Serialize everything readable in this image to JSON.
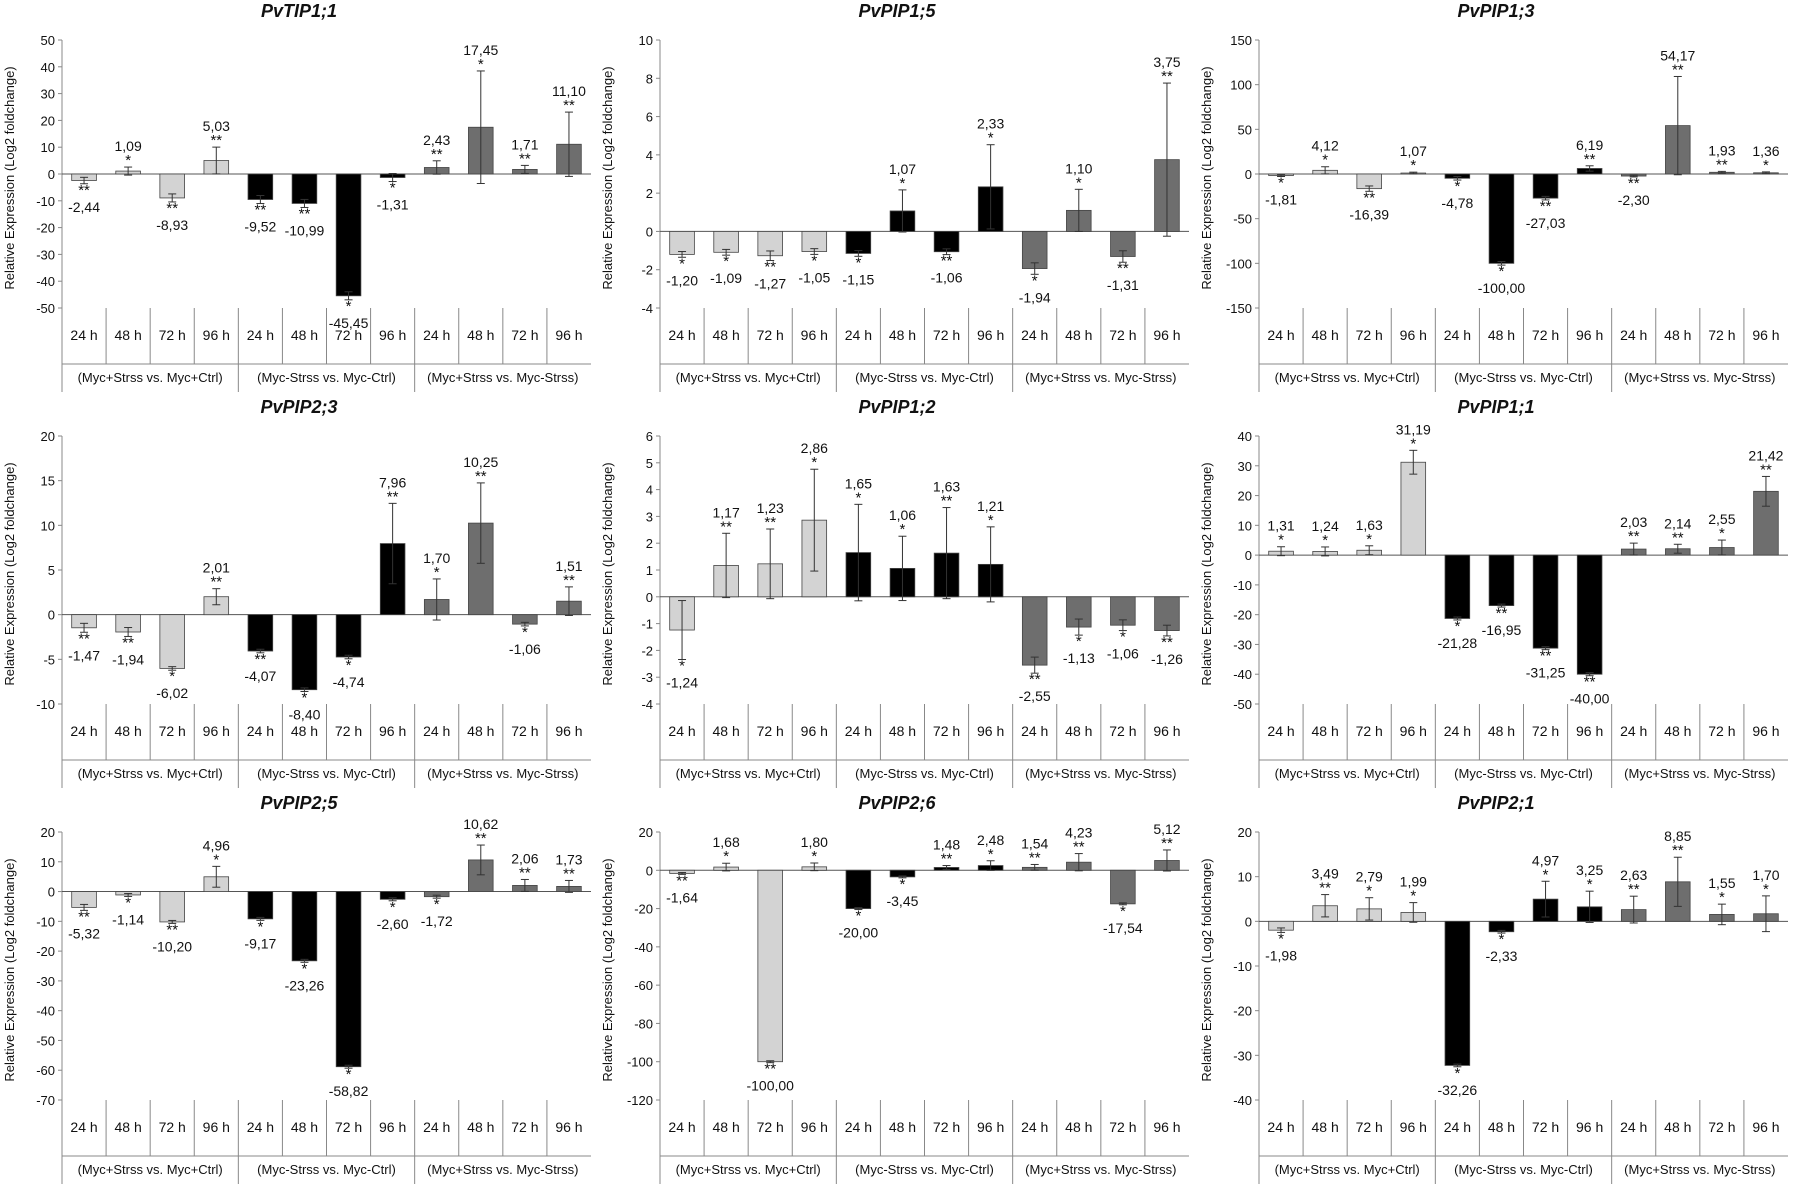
{
  "y_axis_label": "Relative Expression (Log2 foldchange)",
  "times": [
    "24 h",
    "48 h",
    "72 h",
    "96 h"
  ],
  "groups": [
    "(Myc+Strss vs. Myc+Ctrl)",
    "(Myc-Strss vs. Myc-Ctrl)",
    "(Myc+Strss vs. Myc-Strss)"
  ],
  "group_colors": [
    "#d3d3d3",
    "#000000",
    "#6e6e6e"
  ],
  "chart_data": [
    {
      "type": "bar",
      "title": "PvTIP1;1",
      "ylim": [
        -50,
        50
      ],
      "yticks": [
        -50,
        -40,
        -30,
        -20,
        -10,
        0,
        10,
        20,
        30,
        40,
        50
      ],
      "values": [
        -2.44,
        1.09,
        -8.93,
        5.03,
        -9.52,
        -10.99,
        -45.45,
        -1.31,
        2.43,
        17.45,
        1.71,
        11.1
      ],
      "labels": [
        "-2,44",
        "1,09",
        "-8,93",
        "5,03",
        "-9,52",
        "-10,99",
        "-45,45",
        "-1,31",
        "2,43",
        "17,45",
        "1,71",
        "11,10"
      ],
      "stars": [
        "**",
        "*",
        "**",
        "**",
        "**",
        "**",
        "*",
        "*",
        "**",
        "*",
        "**",
        "**"
      ],
      "errors": [
        1.2,
        1.5,
        1.5,
        5,
        1.5,
        1.5,
        1.5,
        1.5,
        2.5,
        21,
        1.5,
        12
      ]
    },
    {
      "type": "bar",
      "title": "PvPIP1;5",
      "ylim": [
        -4,
        10
      ],
      "yticks": [
        -4,
        -2,
        0,
        2,
        4,
        6,
        8,
        10
      ],
      "values": [
        -1.2,
        -1.09,
        -1.27,
        -1.05,
        -1.15,
        1.07,
        -1.06,
        2.33,
        -1.94,
        1.1,
        -1.31,
        3.75
      ],
      "labels": [
        "-1,20",
        "-1,09",
        "-1,27",
        "-1,05",
        "-1,15",
        "1,07",
        "-1,06",
        "2,33",
        "-1,94",
        "1,10",
        "-1,31",
        "3,75"
      ],
      "stars": [
        "*",
        "*",
        "**",
        "*",
        "*",
        "*",
        "**",
        "*",
        "*",
        "*",
        "**",
        "**"
      ],
      "errors": [
        0.15,
        0.15,
        0.25,
        0.15,
        0.15,
        1.1,
        0.15,
        2.2,
        0.3,
        1.1,
        0.3,
        4.0
      ]
    },
    {
      "type": "bar",
      "title": "PvPIP1;3",
      "ylim": [
        -150,
        150
      ],
      "yticks": [
        -150,
        -100,
        -50,
        0,
        50,
        100,
        150
      ],
      "values": [
        -1.81,
        4.12,
        -16.39,
        1.07,
        -4.78,
        -100.0,
        -27.03,
        6.19,
        -2.3,
        54.17,
        1.93,
        1.36
      ],
      "labels": [
        "-1,81",
        "4,12",
        "-16,39",
        "1,07",
        "-4,78",
        "-100,00",
        "-27,03",
        "6,19",
        "-2,30",
        "54,17",
        "1,93",
        "1,36"
      ],
      "stars": [
        "*",
        "*",
        "**",
        "*",
        "*",
        "*",
        "**",
        "**",
        "**",
        "**",
        "**",
        "*"
      ],
      "errors": [
        1,
        4,
        3,
        1,
        2,
        2,
        2,
        3,
        1,
        55,
        1,
        1
      ]
    },
    {
      "type": "bar",
      "title": "PvPIP2;3",
      "ylim": [
        -10,
        20
      ],
      "yticks": [
        -10,
        -5,
        0,
        5,
        10,
        15,
        20
      ],
      "values": [
        -1.47,
        -1.94,
        -6.02,
        2.01,
        -4.07,
        -8.4,
        -4.74,
        7.96,
        1.7,
        10.25,
        -1.06,
        1.51
      ],
      "labels": [
        "-1,47",
        "-1,94",
        "-6,02",
        "2,01",
        "-4,07",
        "-8,40",
        "-4,74",
        "7,96",
        "1,70",
        "10,25",
        "-1,06",
        "1,51"
      ],
      "stars": [
        "**",
        "**",
        "*",
        "**",
        "**",
        "*",
        "*",
        "**",
        "*",
        "**",
        "*",
        "**"
      ],
      "errors": [
        0.5,
        0.5,
        0.2,
        0.9,
        0.2,
        0.2,
        0.2,
        4.5,
        2.3,
        4.5,
        0.2,
        1.6
      ]
    },
    {
      "type": "bar",
      "title": "PvPIP1;2",
      "ylim": [
        -4,
        6
      ],
      "yticks": [
        -4,
        -3,
        -2,
        -1,
        0,
        1,
        2,
        3,
        4,
        5,
        6
      ],
      "values": [
        -1.24,
        1.17,
        1.23,
        2.86,
        1.65,
        1.06,
        1.63,
        1.21,
        -2.55,
        -1.13,
        -1.06,
        -1.26
      ],
      "labels": [
        "-1,24",
        "1,17",
        "1,23",
        "2,86",
        "1,65",
        "1,06",
        "1,63",
        "1,21",
        "-2,55",
        "-1,13",
        "-1,06",
        "-1,26"
      ],
      "stars": [
        "*",
        "**",
        "**",
        "*",
        "*",
        "*",
        "**",
        "*",
        "**",
        "*",
        "*",
        "**"
      ],
      "errors": [
        1.1,
        1.2,
        1.3,
        1.9,
        1.8,
        1.2,
        1.7,
        1.4,
        0.3,
        0.3,
        0.2,
        0.2
      ]
    },
    {
      "type": "bar",
      "title": "PvPIP1;1",
      "ylim": [
        -50,
        40
      ],
      "yticks": [
        -50,
        -40,
        -30,
        -20,
        -10,
        0,
        10,
        20,
        30,
        40
      ],
      "values": [
        1.31,
        1.24,
        1.63,
        31.19,
        -21.28,
        -16.95,
        -31.25,
        -40.0,
        2.03,
        2.14,
        2.55,
        21.42
      ],
      "labels": [
        "1,31",
        "1,24",
        "1,63",
        "31,19",
        "-21,28",
        "-16,95",
        "-31,25",
        "-40,00",
        "2,03",
        "2,14",
        "2,55",
        "21,42"
      ],
      "stars": [
        "*",
        "*",
        "*",
        "*",
        "*",
        "**",
        "**",
        "**",
        "**",
        "**",
        "*",
        "**"
      ],
      "errors": [
        1.5,
        1.5,
        1.5,
        4,
        0.5,
        0.5,
        0.5,
        0.5,
        2,
        1.5,
        2.5,
        5
      ]
    },
    {
      "type": "bar",
      "title": "PvPIP2;5",
      "ylim": [
        -70,
        20
      ],
      "yticks": [
        -70,
        -60,
        -50,
        -40,
        -30,
        -20,
        -10,
        0,
        10,
        20
      ],
      "values": [
        -5.32,
        -1.14,
        -10.2,
        4.96,
        -9.17,
        -23.26,
        -58.82,
        -2.6,
        -1.72,
        10.62,
        2.06,
        1.73
      ],
      "labels": [
        "-5,32",
        "-1,14",
        "-10,20",
        "4,96",
        "-9,17",
        "-23,26",
        "-58,82",
        "-2,60",
        "-1,72",
        "10,62",
        "2,06",
        "1,73"
      ],
      "stars": [
        "**",
        "*",
        "**",
        "*",
        "*",
        "*",
        "*",
        "*",
        "*",
        "**",
        "**",
        "**"
      ],
      "errors": [
        1,
        0.5,
        0.5,
        3.5,
        0.5,
        0.5,
        0.5,
        0.5,
        0.5,
        5,
        2,
        2
      ]
    },
    {
      "type": "bar",
      "title": "PvPIP2;6",
      "ylim": [
        -120,
        20
      ],
      "yticks": [
        -120,
        -100,
        -80,
        -60,
        -40,
        -20,
        0,
        20
      ],
      "values": [
        -1.64,
        1.68,
        -100.0,
        1.8,
        -20.0,
        -3.45,
        1.48,
        2.48,
        1.54,
        4.23,
        -17.54,
        5.12
      ],
      "labels": [
        "-1,64",
        "1,68",
        "-100,00",
        "1,80",
        "-20,00",
        "-3,45",
        "1,48",
        "2,48",
        "1,54",
        "4,23",
        "-17,54",
        "5,12"
      ],
      "stars": [
        "**",
        "*",
        "**",
        "*",
        "*",
        "*",
        "**",
        "*",
        "**",
        "**",
        "*",
        "**"
      ],
      "errors": [
        0.5,
        2,
        0.5,
        2,
        0.5,
        0.5,
        1,
        2.5,
        1.5,
        4.5,
        0.5,
        5.5
      ]
    },
    {
      "type": "bar",
      "title": "PvPIP2;1",
      "ylim": [
        -40,
        20
      ],
      "yticks": [
        -40,
        -30,
        -20,
        -10,
        0,
        10,
        20
      ],
      "values": [
        -1.98,
        3.49,
        2.79,
        1.99,
        -32.26,
        -2.33,
        4.97,
        3.25,
        2.63,
        8.85,
        1.55,
        1.7
      ],
      "labels": [
        "-1,98",
        "3,49",
        "2,79",
        "1,99",
        "-32,26",
        "-2,33",
        "4,97",
        "3,25",
        "2,63",
        "8,85",
        "1,55",
        "1,70"
      ],
      "stars": [
        "*",
        "**",
        "*",
        "*",
        "*",
        "*",
        "*",
        "*",
        "**",
        "**",
        "*",
        "*"
      ],
      "errors": [
        0.5,
        2.5,
        2.5,
        2.2,
        0.3,
        0.3,
        4,
        3.5,
        3,
        5.5,
        2.3,
        4
      ]
    }
  ]
}
